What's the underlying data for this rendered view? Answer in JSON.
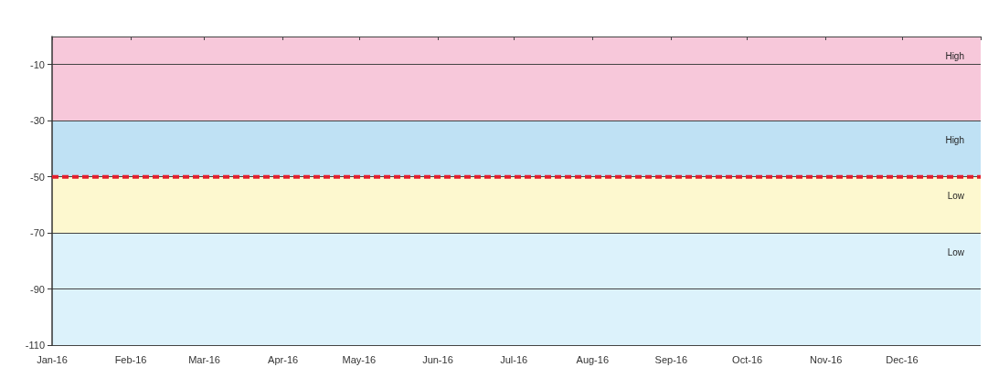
{
  "chart_data": {
    "type": "line",
    "x": [
      "2016-01",
      "2016-02",
      "2016-03",
      "2016-04",
      "2016-05",
      "2016-06",
      "2016-07",
      "2016-08",
      "2016-09",
      "2016-10",
      "2016-11",
      "2016-12",
      "2017-01"
    ],
    "series": [
      {
        "color": "#e31e2d",
        "values": [
          -50,
          -50,
          -50,
          -50,
          -50,
          -50,
          -50,
          -50,
          -50,
          -50,
          -50,
          -50,
          -50
        ],
        "line_style": "dashed",
        "marker": "none"
      }
    ],
    "xlim": [
      "2016-01",
      "2017-01"
    ],
    "xticks": [
      {
        "value": "2016-01",
        "label": "Jan-16"
      },
      {
        "value": "2016-02",
        "label": "Feb-16"
      },
      {
        "value": "2016-03",
        "label": "Mar-16"
      },
      {
        "value": "2016-04",
        "label": "Apr-16"
      },
      {
        "value": "2016-05",
        "label": "May-16"
      },
      {
        "value": "2016-06",
        "label": "Jun-16"
      },
      {
        "value": "2016-07",
        "label": "Jul-16"
      },
      {
        "value": "2016-08",
        "label": "Aug-16"
      },
      {
        "value": "2016-09",
        "label": "Sep-16"
      },
      {
        "value": "2016-10",
        "label": "Oct-16"
      },
      {
        "value": "2016-11",
        "label": "Nov-16"
      },
      {
        "value": "2016-12",
        "label": "Dec-16"
      },
      {
        "value": "2017-01",
        "label": null
      }
    ],
    "ylim": [
      -110,
      0
    ],
    "yticks": [
      -110,
      -90,
      -70,
      -50,
      -30,
      -10
    ],
    "grid": "y",
    "bands": [
      {
        "axis": "y",
        "from": -30,
        "to": 0,
        "label": "High",
        "color": "#f7c8da"
      },
      {
        "axis": "y",
        "from": -50,
        "to": -30,
        "label": "High",
        "color": "#bfe1f4"
      },
      {
        "axis": "y",
        "from": -70,
        "to": -50,
        "label": "Low",
        "color": "#fdf8cf"
      },
      {
        "axis": "y",
        "from": -110,
        "to": -70,
        "label": "Low",
        "color": "#dcf2fb"
      }
    ]
  }
}
